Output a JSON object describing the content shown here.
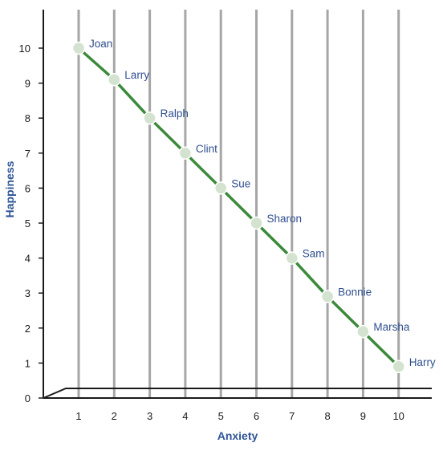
{
  "chart_data": {
    "type": "scatter",
    "xlabel": "Anxiety",
    "ylabel": "Happiness",
    "x_ticks": [
      "1",
      "2",
      "3",
      "4",
      "5",
      "6",
      "7",
      "8",
      "9",
      "10"
    ],
    "y_ticks": [
      "0",
      "1",
      "2",
      "3",
      "4",
      "5",
      "6",
      "7",
      "8",
      "9",
      "10"
    ],
    "xlim": [
      1,
      10
    ],
    "ylim": [
      0,
      10
    ],
    "grid": "vertical",
    "trend_line": true,
    "points": [
      {
        "label": "Joan",
        "x": 1,
        "y": 10
      },
      {
        "label": "Larry",
        "x": 2,
        "y": 9.1
      },
      {
        "label": "Ralph",
        "x": 3,
        "y": 8
      },
      {
        "label": "Clint",
        "x": 4,
        "y": 7
      },
      {
        "label": "Sue",
        "x": 5,
        "y": 6
      },
      {
        "label": "Sharon",
        "x": 6,
        "y": 5
      },
      {
        "label": "Sam",
        "x": 7,
        "y": 4
      },
      {
        "label": "Bonnie",
        "x": 8,
        "y": 2.9
      },
      {
        "label": "Marsha",
        "x": 9,
        "y": 1.9
      },
      {
        "label": "Harry",
        "x": 10,
        "y": 0.9
      }
    ],
    "colors": {
      "grid": "#a6a6a6",
      "axis": "#1a1a1a",
      "line": "#3a8a3a",
      "marker_fill": "#d4e3cf",
      "marker_stroke": "#ffffff",
      "title": "#2f5597",
      "point_label": "#2f4f8f"
    }
  }
}
